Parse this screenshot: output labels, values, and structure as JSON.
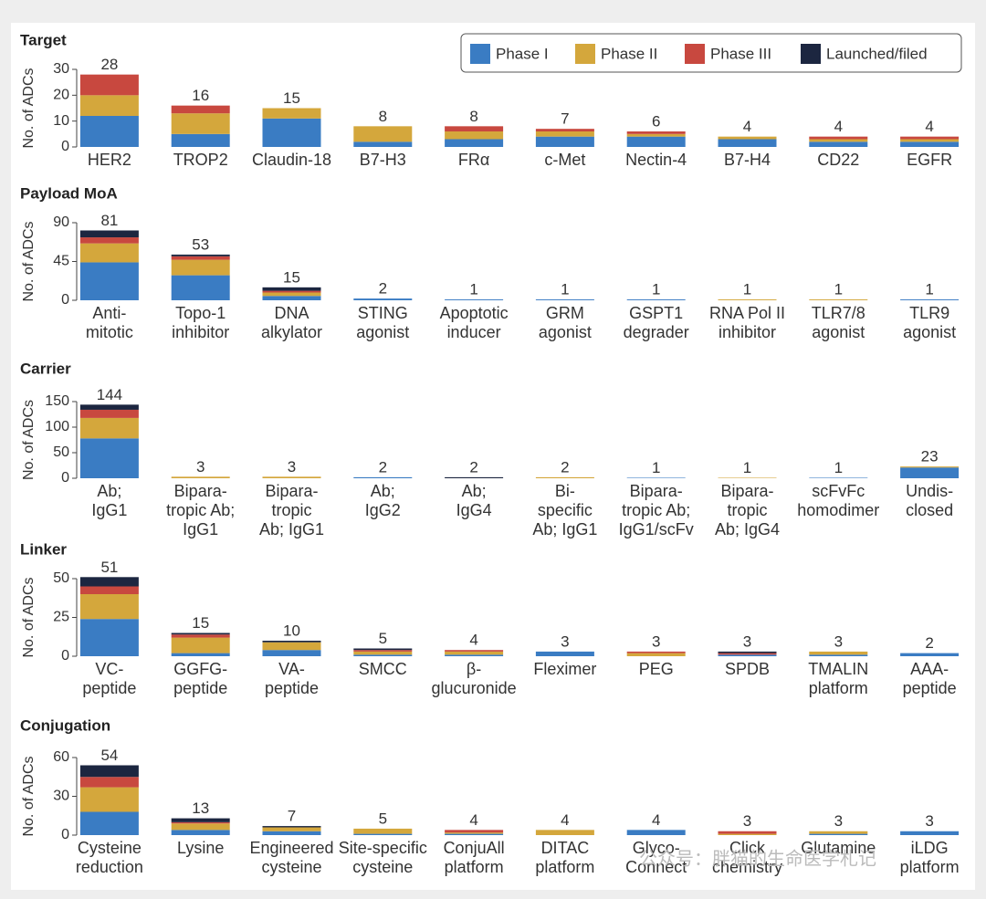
{
  "chart_data": [
    {
      "type": "stacked-bar",
      "title": "Target",
      "y_label": "No. of ADCs",
      "legend": "top-right",
      "categories": [
        "HER2",
        "TROP2",
        "Claudin-18",
        "B7-H3",
        "FRα",
        "c-Met",
        "Nectin-4",
        "B7-H4",
        "CD22",
        "EGFR"
      ],
      "series": [
        {
          "name": "Phase I",
          "color": "#3a7cc3",
          "values": [
            12,
            5,
            11,
            2,
            3,
            4,
            4,
            3,
            2,
            2
          ]
        },
        {
          "name": "Phase II",
          "color": "#d4a73c",
          "values": [
            8,
            8,
            4,
            6,
            3,
            2,
            1,
            1,
            1,
            1
          ]
        },
        {
          "name": "Phase III",
          "color": "#c8483f",
          "values": [
            8,
            3,
            0,
            0,
            2,
            1,
            1,
            0,
            1,
            1
          ]
        },
        {
          "name": "Launched/filed",
          "color": "#1c2640",
          "values": [
            0,
            0,
            0,
            0,
            0,
            0,
            0,
            0,
            0,
            0
          ]
        }
      ],
      "totals": [
        28,
        16,
        15,
        8,
        8,
        7,
        6,
        4,
        4,
        4
      ],
      "ylim": [
        0,
        30
      ],
      "yticks": [
        0,
        10,
        20,
        30
      ]
    },
    {
      "type": "stacked-bar",
      "title": "Payload MoA",
      "y_label": "No. of ADCs",
      "categories": [
        "Anti-\nmitotic",
        "Topo-1\ninhibitor",
        "DNA\nalkylator",
        "STING\nagonist",
        "Apoptotic\ninducer",
        "GRM\nagonist",
        "GSPT1\ndegrader",
        "RNA Pol II\ninhibitor",
        "TLR7/8\nagonist",
        "TLR9\nagonist"
      ],
      "series": [
        {
          "color": "#3a7cc3",
          "values": [
            44,
            29,
            5,
            2,
            1,
            1,
            1,
            0,
            0,
            1
          ]
        },
        {
          "color": "#d4a73c",
          "values": [
            22,
            18,
            4,
            0,
            0,
            0,
            0,
            1,
            1,
            0
          ]
        },
        {
          "color": "#c8483f",
          "values": [
            7,
            4,
            2,
            0,
            0,
            0,
            0,
            0,
            0,
            0
          ]
        },
        {
          "color": "#1c2640",
          "values": [
            8,
            2,
            4,
            0,
            0,
            0,
            0,
            0,
            0,
            0
          ]
        }
      ],
      "totals": [
        81,
        53,
        15,
        2,
        1,
        1,
        1,
        1,
        1,
        1
      ],
      "ylim": [
        0,
        90
      ],
      "yticks": [
        0,
        45,
        90
      ]
    },
    {
      "type": "stacked-bar",
      "title": "Carrier",
      "y_label": "No. of ADCs",
      "categories": [
        "Ab;\nIgG1",
        "Bipara-\ntropic Ab;\nIgG1",
        "Bipara-\ntropic\nAb; IgG1",
        "Ab;\nIgG2",
        "Ab;\nIgG4",
        "Bi-\nspecific\nAb; IgG1",
        "Bipara-\ntropic Ab;\nIgG1/scFv",
        "Bipara-\ntropic\nAb; IgG4",
        "scFvFc\nhomodimer",
        "Undis-\nclosed"
      ],
      "series": [
        {
          "color": "#3a7cc3",
          "values": [
            78,
            0,
            0,
            2,
            0,
            0,
            1,
            0,
            1,
            21
          ]
        },
        {
          "color": "#d4a73c",
          "values": [
            40,
            3,
            3,
            0,
            0,
            2,
            0,
            1,
            0,
            2
          ]
        },
        {
          "color": "#c8483f",
          "values": [
            16,
            0,
            0,
            0,
            0,
            0,
            0,
            0,
            0,
            0
          ]
        },
        {
          "color": "#1c2640",
          "values": [
            10,
            0,
            0,
            0,
            2,
            0,
            0,
            0,
            0,
            0
          ]
        }
      ],
      "totals": [
        144,
        3,
        3,
        2,
        2,
        2,
        1,
        1,
        1,
        23
      ],
      "ylim": [
        0,
        150
      ],
      "yticks": [
        0,
        50,
        100,
        150
      ]
    },
    {
      "type": "stacked-bar",
      "title": "Linker",
      "y_label": "No. of ADCs",
      "categories": [
        "VC-\npeptide",
        "GGFG-\npeptide",
        "VA-\npeptide",
        "SMCC",
        "β-\nglucuronide",
        "Fleximer",
        "PEG",
        "SPDB",
        "TMALIN\nplatform",
        "AAA-\npeptide"
      ],
      "series": [
        {
          "color": "#3a7cc3",
          "values": [
            24,
            2,
            4,
            1,
            1,
            3,
            0,
            1,
            1,
            2
          ]
        },
        {
          "color": "#d4a73c",
          "values": [
            16,
            10,
            5,
            2,
            2,
            0,
            2,
            0,
            2,
            0
          ]
        },
        {
          "color": "#c8483f",
          "values": [
            5,
            2,
            0,
            1,
            1,
            0,
            1,
            1,
            0,
            0
          ]
        },
        {
          "color": "#1c2640",
          "values": [
            6,
            1,
            1,
            1,
            0,
            0,
            0,
            1,
            0,
            0
          ]
        }
      ],
      "totals": [
        51,
        15,
        10,
        5,
        4,
        3,
        3,
        3,
        3,
        2
      ],
      "ylim": [
        0,
        50
      ],
      "yticks": [
        0,
        25,
        50
      ]
    },
    {
      "type": "stacked-bar",
      "title": "Conjugation",
      "y_label": "No. of ADCs",
      "categories": [
        "Cysteine\nreduction",
        "Lysine",
        "Engineered\ncysteine",
        "Site-specific\ncysteine",
        "ConjuAll\nplatform",
        "DITAC\nplatform",
        "Glyco-\nConnect",
        "Click\nchemistry",
        "Glutamine",
        "iLDG\nplatform"
      ],
      "series": [
        {
          "color": "#3a7cc3",
          "values": [
            18,
            4,
            3,
            1,
            1,
            0,
            4,
            0,
            1,
            3
          ]
        },
        {
          "color": "#d4a73c",
          "values": [
            19,
            5,
            3,
            4,
            1,
            4,
            0,
            1,
            2,
            0
          ]
        },
        {
          "color": "#c8483f",
          "values": [
            8,
            1,
            0,
            0,
            2,
            0,
            0,
            2,
            0,
            0
          ]
        },
        {
          "color": "#1c2640",
          "values": [
            9,
            3,
            1,
            0,
            0,
            0,
            0,
            0,
            0,
            0
          ]
        }
      ],
      "totals": [
        54,
        13,
        7,
        5,
        4,
        4,
        4,
        3,
        3,
        3
      ],
      "ylim": [
        0,
        60
      ],
      "yticks": [
        0,
        30,
        60
      ]
    }
  ],
  "watermark": "公众号：胖猫的生命医学札记"
}
